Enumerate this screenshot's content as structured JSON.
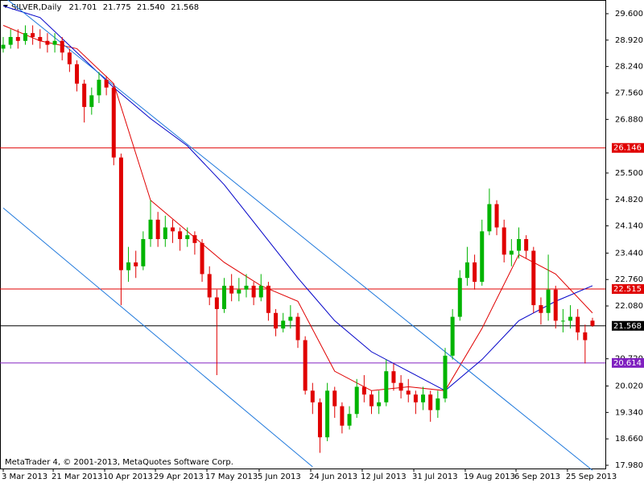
{
  "chart_data": {
    "type": "candlestick",
    "title": "SILVER,Daily",
    "last_value_labels": [
      "21.701",
      "21.775",
      "21.540",
      "21.568"
    ],
    "footer": "MetaTrader 4, © 2001-2013, MetaQuotes Software Corp.",
    "up_color": "#00b400",
    "down_color": "#e00000",
    "ylim": [
      17.897,
      29.952
    ],
    "yticks": [
      {
        "value": 29.6,
        "label": "29.600"
      },
      {
        "value": 28.92,
        "label": "28.920"
      },
      {
        "value": 28.24,
        "label": "28.240"
      },
      {
        "value": 27.56,
        "label": "27.560"
      },
      {
        "value": 26.88,
        "label": "26.880"
      },
      {
        "value": 25.5,
        "label": "25.500"
      },
      {
        "value": 24.82,
        "label": "24.820"
      },
      {
        "value": 24.14,
        "label": "24.140"
      },
      {
        "value": 23.44,
        "label": "23.440"
      },
      {
        "value": 22.76,
        "label": "22.760"
      },
      {
        "value": 22.08,
        "label": "22.080"
      },
      {
        "value": 20.72,
        "label": "20.720"
      },
      {
        "value": 20.02,
        "label": "20.020"
      },
      {
        "value": 19.34,
        "label": "19.340"
      },
      {
        "value": 18.66,
        "label": "18.660"
      },
      {
        "value": 17.98,
        "label": "17.980"
      }
    ],
    "xlim": [
      -0.44,
      81.75
    ],
    "xticks": [
      {
        "value": 0,
        "label": "3 Mar 2013"
      },
      {
        "value": 6.78,
        "label": "21 Mar 2013"
      },
      {
        "value": 13.77,
        "label": "10 Apr 2013"
      },
      {
        "value": 20.66,
        "label": "29 Apr 2013"
      },
      {
        "value": 27.65,
        "label": "17 May 2013"
      },
      {
        "value": 34.75,
        "label": "5 Jun 2013"
      },
      {
        "value": 41.75,
        "label": "24 Jun 2013"
      },
      {
        "value": 48.74,
        "label": "12 Jul 2013"
      },
      {
        "value": 55.74,
        "label": "31 Jul 2013"
      },
      {
        "value": 62.73,
        "label": "19 Aug 2013"
      },
      {
        "value": 69.62,
        "label": "6 Sep 2013"
      },
      {
        "value": 76.6,
        "label": "25 Sep 2013"
      }
    ],
    "candles": [
      [
        28.7,
        29.0,
        28.6,
        28.8
      ],
      [
        28.8,
        29.2,
        28.7,
        29.0
      ],
      [
        29.0,
        29.2,
        28.7,
        28.9
      ],
      [
        28.9,
        29.3,
        28.8,
        29.1
      ],
      [
        29.1,
        29.3,
        28.8,
        29.0
      ],
      [
        29.0,
        29.2,
        28.7,
        28.9
      ],
      [
        28.9,
        29.1,
        28.6,
        28.8
      ],
      [
        28.8,
        29.1,
        28.6,
        28.9
      ],
      [
        28.9,
        29.0,
        28.4,
        28.6
      ],
      [
        28.6,
        28.7,
        28.1,
        28.3
      ],
      [
        28.3,
        28.4,
        27.6,
        27.8
      ],
      [
        27.8,
        27.9,
        26.8,
        27.2
      ],
      [
        27.2,
        27.7,
        27.0,
        27.5
      ],
      [
        27.5,
        28.1,
        27.3,
        27.9
      ],
      [
        27.9,
        28.0,
        27.5,
        27.7
      ],
      [
        27.7,
        27.8,
        25.7,
        25.9
      ],
      [
        25.9,
        26.0,
        22.1,
        23.0
      ],
      [
        23.0,
        23.6,
        22.7,
        23.2
      ],
      [
        23.2,
        23.5,
        22.8,
        23.1
      ],
      [
        23.1,
        24.0,
        23.0,
        23.8
      ],
      [
        23.8,
        24.8,
        23.6,
        24.3
      ],
      [
        24.3,
        24.5,
        23.6,
        23.8
      ],
      [
        23.8,
        24.4,
        23.6,
        24.1
      ],
      [
        24.1,
        24.3,
        23.7,
        24.0
      ],
      [
        24.0,
        24.1,
        23.5,
        23.8
      ],
      [
        23.8,
        24.1,
        23.6,
        23.9
      ],
      [
        23.9,
        24.0,
        23.4,
        23.7
      ],
      [
        23.7,
        23.8,
        22.7,
        22.9
      ],
      [
        22.9,
        23.1,
        22.1,
        22.3
      ],
      [
        22.3,
        22.5,
        20.3,
        22.0
      ],
      [
        22.0,
        22.8,
        21.9,
        22.6
      ],
      [
        22.6,
        22.9,
        22.2,
        22.4
      ],
      [
        22.4,
        22.8,
        22.2,
        22.5
      ],
      [
        22.5,
        22.9,
        22.3,
        22.6
      ],
      [
        22.6,
        22.7,
        22.1,
        22.3
      ],
      [
        22.3,
        22.9,
        22.2,
        22.6
      ],
      [
        22.6,
        22.7,
        21.7,
        21.9
      ],
      [
        21.9,
        22.0,
        21.3,
        21.5
      ],
      [
        21.5,
        21.9,
        21.4,
        21.7
      ],
      [
        21.7,
        22.1,
        21.5,
        21.8
      ],
      [
        21.8,
        21.9,
        21.0,
        21.2
      ],
      [
        21.2,
        21.3,
        19.8,
        19.9
      ],
      [
        19.9,
        20.1,
        19.3,
        19.6
      ],
      [
        19.6,
        19.7,
        18.3,
        18.7
      ],
      [
        18.7,
        20.1,
        18.6,
        19.9
      ],
      [
        19.9,
        20.0,
        19.2,
        19.5
      ],
      [
        19.5,
        19.6,
        18.8,
        19.0
      ],
      [
        19.0,
        19.5,
        18.9,
        19.3
      ],
      [
        19.3,
        20.2,
        19.2,
        20.0
      ],
      [
        20.0,
        20.3,
        19.6,
        19.8
      ],
      [
        19.8,
        19.9,
        19.3,
        19.5
      ],
      [
        19.5,
        19.9,
        19.3,
        19.6
      ],
      [
        19.6,
        20.7,
        19.5,
        20.4
      ],
      [
        20.4,
        20.6,
        19.9,
        20.1
      ],
      [
        20.1,
        20.3,
        19.7,
        19.9
      ],
      [
        19.9,
        20.2,
        19.6,
        19.8
      ],
      [
        19.8,
        19.9,
        19.3,
        19.6
      ],
      [
        19.6,
        20.0,
        19.4,
        19.8
      ],
      [
        19.8,
        19.9,
        19.1,
        19.4
      ],
      [
        19.4,
        19.9,
        19.2,
        19.7
      ],
      [
        19.7,
        21.0,
        19.6,
        20.8
      ],
      [
        20.8,
        22.0,
        20.7,
        21.8
      ],
      [
        21.8,
        23.0,
        21.7,
        22.8
      ],
      [
        22.8,
        23.6,
        22.6,
        23.2
      ],
      [
        23.2,
        23.4,
        22.5,
        22.7
      ],
      [
        22.7,
        24.3,
        22.6,
        24.0
      ],
      [
        24.0,
        25.1,
        23.9,
        24.7
      ],
      [
        24.7,
        24.8,
        23.9,
        24.1
      ],
      [
        24.1,
        24.3,
        23.2,
        23.4
      ],
      [
        23.4,
        23.8,
        23.1,
        23.5
      ],
      [
        23.5,
        24.1,
        23.3,
        23.8
      ],
      [
        23.8,
        23.9,
        23.3,
        23.5
      ],
      [
        23.5,
        23.6,
        21.9,
        22.1
      ],
      [
        22.1,
        22.3,
        21.6,
        21.9
      ],
      [
        21.9,
        23.4,
        21.7,
        22.5
      ],
      [
        22.5,
        22.6,
        21.5,
        21.7
      ],
      [
        21.7,
        22.0,
        21.4,
        21.7
      ],
      [
        21.7,
        22.1,
        21.5,
        21.8
      ],
      [
        21.8,
        22.0,
        21.2,
        21.4
      ],
      [
        21.4,
        21.6,
        20.6,
        21.2
      ],
      [
        21.701,
        21.775,
        21.54,
        21.568
      ]
    ],
    "series": [
      {
        "color": "#e00000",
        "x": [
          0,
          5,
          10,
          15,
          20,
          25,
          30,
          35,
          40,
          45,
          50,
          55,
          60,
          65,
          70,
          75,
          80
        ],
        "values": [
          29.3,
          28.9,
          28.7,
          27.8,
          24.8,
          24.0,
          23.2,
          22.6,
          22.2,
          20.4,
          19.9,
          20.0,
          19.9,
          21.5,
          23.4,
          22.9,
          21.9
        ]
      },
      {
        "color": "#0000c8",
        "x": [
          0,
          5,
          10,
          15,
          20,
          25,
          30,
          35,
          40,
          45,
          50,
          55,
          60,
          65,
          70,
          75,
          80
        ],
        "values": [
          29.8,
          29.5,
          28.6,
          27.7,
          26.9,
          26.2,
          25.2,
          24.0,
          22.8,
          21.7,
          20.9,
          20.4,
          19.9,
          20.7,
          21.7,
          22.2,
          22.6
        ]
      },
      {
        "color": "#1e78dc",
        "x": [
          0,
          80
        ],
        "values": [
          30.05,
          17.85
        ]
      },
      {
        "color": "#1e78dc",
        "x": [
          0,
          42
        ],
        "values": [
          24.6,
          17.94
        ]
      }
    ],
    "levels": [
      {
        "value": 26.146,
        "color": "#e00000"
      },
      {
        "value": 22.515,
        "color": "#e00000"
      },
      {
        "value": 21.568,
        "color": "#000000"
      },
      {
        "value": 20.614,
        "color": "#8020c0"
      }
    ]
  }
}
